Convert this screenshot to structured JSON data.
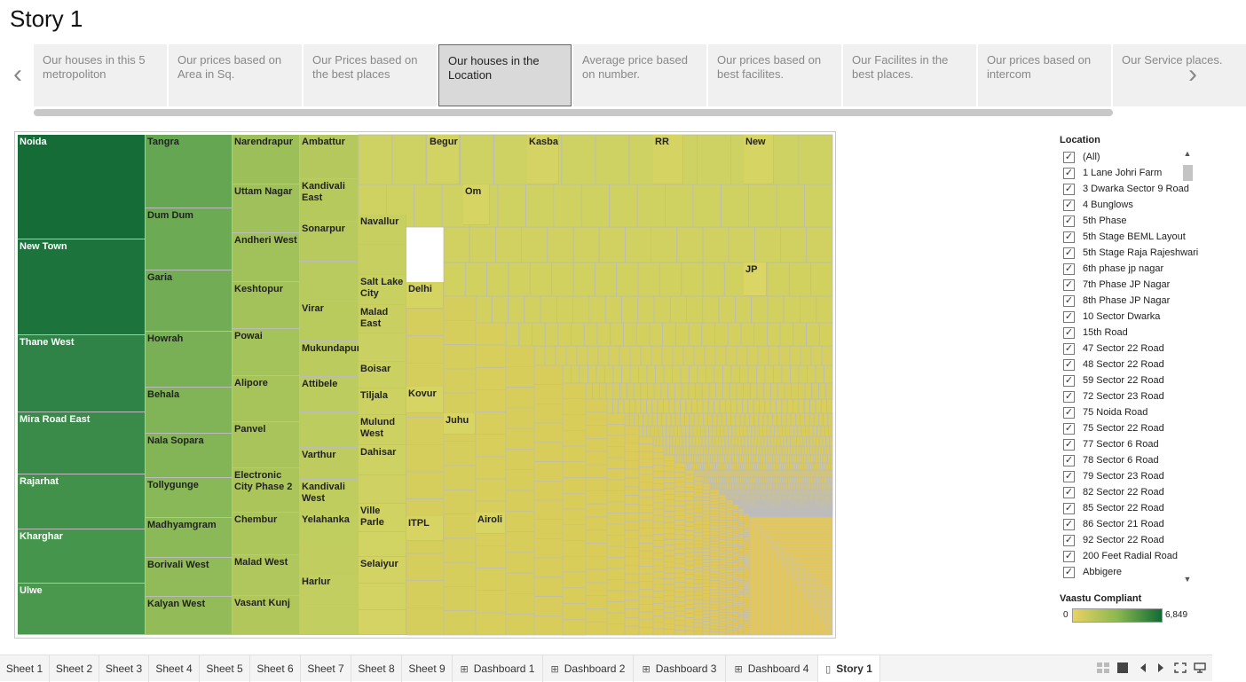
{
  "title": "Story 1",
  "story_points": [
    {
      "label": "Our houses in this 5 metropoliton",
      "active": false
    },
    {
      "label": "Our prices based on Area in Sq.",
      "active": false
    },
    {
      "label": "Our Prices based on the best places",
      "active": false
    },
    {
      "label": "Our houses in the Location",
      "active": true
    },
    {
      "label": "Average price based on number.",
      "active": false
    },
    {
      "label": "Our prices based on best facilites.",
      "active": false
    },
    {
      "label": "Our Facilites in the best places.",
      "active": false
    },
    {
      "label": "Our prices based on intercom",
      "active": false
    },
    {
      "label": "Our Service places.",
      "active": false
    }
  ],
  "nav": {
    "prev": "‹",
    "next": "›"
  },
  "treemap": {
    "labels": {
      "noida": "Noida",
      "new_town": "New Town",
      "thane_west": "Thane West",
      "mira_road_east": "Mira Road East",
      "rajarhat": "Rajarhat",
      "kharghar": "Kharghar",
      "ulwe": "Ulwe",
      "tangra": "Tangra",
      "dum_dum": "Dum Dum",
      "garia": "Garia",
      "howrah": "Howrah",
      "behala": "Behala",
      "nala_sopara": "Nala Sopara",
      "tollygunge": "Tollygunge",
      "madhyamgram": "Madhyamgram",
      "borivali_west": "Borivali West",
      "kalyan_west": "Kalyan West",
      "narendrapur": "Narendrapur",
      "uttam_nagar": "Uttam Nagar",
      "andheri_west": "Andheri West",
      "keshtopur": "Keshtopur",
      "powai": "Powai",
      "alipore": "Alipore",
      "panvel": "Panvel",
      "electronic_city": "Electronic City Phase 2",
      "chembur": "Chembur",
      "malad_west": "Malad West",
      "vasant_kunj": "Vasant Kunj",
      "ambattur": "Ambattur",
      "kandivali_east": "Kandivali East",
      "sonarpur": "Sonarpur",
      "virar": "Virar",
      "mukundapur": "Mukundapur",
      "attibele": "Attibele",
      "varthur": "Varthur",
      "kandivali_west": "Kandivali West",
      "yelahanka": "Yelahanka",
      "harlur": "Harlur",
      "navallur": "Navallur",
      "salt_lake": "Salt Lake City",
      "malad_east": "Malad East",
      "boisar": "Boisar",
      "tiljala": "Tiljala",
      "mulund_west": "Mulund West",
      "dahisar": "Dahisar",
      "ville_parle": "Ville Parle",
      "selaiyur": "Selaiyur",
      "delhi": "Delhi",
      "kovur": "Kovur",
      "itpl": "ITPL",
      "juhu": "Juhu",
      "airoli": "Airoli",
      "begur": "Begur",
      "kasba": "Kasba",
      "rr": "RR",
      "new": "New",
      "om": "Om",
      "jp": "JP"
    }
  },
  "filter": {
    "title": "Location",
    "items": [
      {
        "label": "(All)",
        "checked": true
      },
      {
        "label": "1 Lane Johri Farm",
        "checked": true
      },
      {
        "label": "3 Dwarka Sector 9 Road",
        "checked": true
      },
      {
        "label": "4 Bunglows",
        "checked": true
      },
      {
        "label": "5th Phase",
        "checked": true
      },
      {
        "label": "5th Stage BEML Layout",
        "checked": true
      },
      {
        "label": "5th Stage Raja Rajeshwari",
        "checked": true
      },
      {
        "label": "6th phase jp nagar",
        "checked": true
      },
      {
        "label": "7th Phase JP Nagar",
        "checked": true
      },
      {
        "label": "8th Phase JP Nagar",
        "checked": true
      },
      {
        "label": "10 Sector Dwarka",
        "checked": true
      },
      {
        "label": "15th Road",
        "checked": true
      },
      {
        "label": "47 Sector 22 Road",
        "checked": true
      },
      {
        "label": "48 Sector 22 Road",
        "checked": true
      },
      {
        "label": "59 Sector 22 Road",
        "checked": true
      },
      {
        "label": "72 Sector 23 Road",
        "checked": true
      },
      {
        "label": "75 Noida Road",
        "checked": true
      },
      {
        "label": "75 Sector 22 Road",
        "checked": true
      },
      {
        "label": "77 Sector 6 Road",
        "checked": true
      },
      {
        "label": "78 Sector 6 Road",
        "checked": true
      },
      {
        "label": "79 Sector 23 Road",
        "checked": true
      },
      {
        "label": "82 Sector 22 Road",
        "checked": true
      },
      {
        "label": "85 Sector 22 Road",
        "checked": true
      },
      {
        "label": "86 Sector 21 Road",
        "checked": true
      },
      {
        "label": "92 Sector 22 Road",
        "checked": true
      },
      {
        "label": "200 Feet Radial Road",
        "checked": true
      },
      {
        "label": "Abbigere",
        "checked": true
      }
    ]
  },
  "legend": {
    "title": "Vaastu Compliant",
    "min": "0",
    "max": "6,849"
  },
  "tabs": [
    {
      "label": "Sheet 1",
      "icon": ""
    },
    {
      "label": "Sheet 2",
      "icon": ""
    },
    {
      "label": "Sheet 3",
      "icon": ""
    },
    {
      "label": "Sheet 4",
      "icon": ""
    },
    {
      "label": "Sheet 5",
      "icon": ""
    },
    {
      "label": "Sheet 6",
      "icon": ""
    },
    {
      "label": "Sheet 7",
      "icon": ""
    },
    {
      "label": "Sheet 8",
      "icon": ""
    },
    {
      "label": "Sheet 9",
      "icon": ""
    },
    {
      "label": "Dashboard 1",
      "icon": "dashboard-icon"
    },
    {
      "label": "Dashboard 2",
      "icon": "dashboard-icon"
    },
    {
      "label": "Dashboard 3",
      "icon": "dashboard-icon"
    },
    {
      "label": "Dashboard 4",
      "icon": "dashboard-icon"
    },
    {
      "label": "Story 1",
      "icon": "story-icon",
      "active": true
    }
  ],
  "bottom_controls": [
    "grid-view-icon",
    "filmstrip-icon",
    "first-sheet-icon",
    "next-sheet-icon",
    "fit-screen-icon",
    "presentation-icon"
  ]
}
